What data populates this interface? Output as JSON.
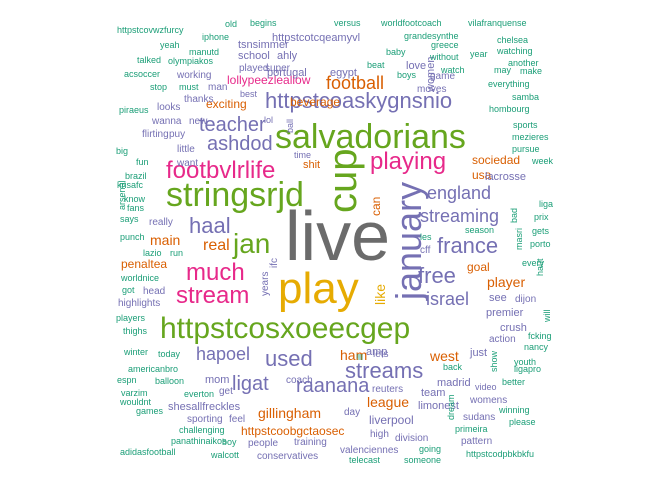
{
  "colors": {
    "gray": "#6b6b6b",
    "gold": "#e6ab02",
    "green": "#66a61e",
    "magenta": "#e7298a",
    "purple": "#7570b3",
    "orange": "#d95f02",
    "teal": "#1b9e77"
  },
  "words": [
    {
      "text": "live",
      "color": "gray"
    },
    {
      "text": "play",
      "color": "gold"
    },
    {
      "text": "httpstcosxoeecgep",
      "color": "green"
    },
    {
      "text": "salvadorians",
      "color": "green"
    },
    {
      "text": "stringsrjd",
      "color": "green"
    },
    {
      "text": "cup",
      "color": "green"
    },
    {
      "text": "january",
      "color": "purple"
    },
    {
      "text": "playing",
      "color": "magenta"
    },
    {
      "text": "jan",
      "color": "green"
    },
    {
      "text": "streams",
      "color": "purple"
    },
    {
      "text": "httpstcoaskygnsnio",
      "color": "purple"
    },
    {
      "text": "footbvlrlife",
      "color": "magenta"
    },
    {
      "text": "much",
      "color": "magenta"
    },
    {
      "text": "stream",
      "color": "magenta"
    },
    {
      "text": "used",
      "color": "purple"
    },
    {
      "text": "france",
      "color": "purple"
    },
    {
      "text": "free",
      "color": "purple"
    },
    {
      "text": "teacher",
      "color": "purple"
    },
    {
      "text": "england",
      "color": "purple"
    },
    {
      "text": "streaming",
      "color": "purple"
    },
    {
      "text": "haal",
      "color": "purple"
    },
    {
      "text": "israel",
      "color": "purple"
    },
    {
      "text": "hapoel",
      "color": "purple"
    },
    {
      "text": "ashdod",
      "color": "purple"
    },
    {
      "text": "ligat",
      "color": "purple"
    },
    {
      "text": "raanana",
      "color": "purple"
    },
    {
      "text": "football",
      "color": "orange"
    },
    {
      "text": "like",
      "color": "gold"
    },
    {
      "text": "real",
      "color": "orange"
    },
    {
      "text": "main",
      "color": "orange"
    },
    {
      "text": "gillingham",
      "color": "orange"
    },
    {
      "text": "league",
      "color": "orange"
    },
    {
      "text": "player",
      "color": "orange"
    },
    {
      "text": "goal",
      "color": "orange"
    },
    {
      "text": "ham",
      "color": "orange"
    },
    {
      "text": "west",
      "color": "orange"
    },
    {
      "text": "usa",
      "color": "orange"
    },
    {
      "text": "sociedad",
      "color": "orange"
    },
    {
      "text": "can",
      "color": "orange"
    },
    {
      "text": "httpstcoobgctaosec",
      "color": "orange"
    },
    {
      "text": "penaltea",
      "color": "orange"
    },
    {
      "text": "lollypeezleallow",
      "color": "magenta"
    },
    {
      "text": "exciting",
      "color": "orange"
    },
    {
      "text": "shit",
      "color": "orange"
    },
    {
      "text": "beverage",
      "color": "orange"
    },
    {
      "text": "liverpool",
      "color": "purple"
    },
    {
      "text": "madrid",
      "color": "purple"
    },
    {
      "text": "team",
      "color": "purple"
    },
    {
      "text": "mom",
      "color": "purple"
    },
    {
      "text": "coach",
      "color": "purple"
    },
    {
      "text": "shesallfreckles",
      "color": "purple"
    },
    {
      "text": "tsnsimmer",
      "color": "purple"
    },
    {
      "text": "school",
      "color": "purple"
    },
    {
      "text": "ahly",
      "color": "purple"
    },
    {
      "text": "httpstcotcqeamyvl",
      "color": "purple"
    },
    {
      "text": "portugal",
      "color": "purple"
    },
    {
      "text": "egypt",
      "color": "purple"
    },
    {
      "text": "love",
      "color": "purple"
    },
    {
      "text": "women",
      "color": "purple"
    },
    {
      "text": "game",
      "color": "purple"
    },
    {
      "text": "moves",
      "color": "purple"
    },
    {
      "text": "just",
      "color": "purple"
    },
    {
      "text": "premier",
      "color": "purple"
    },
    {
      "text": "amp",
      "color": "purple"
    },
    {
      "text": "see",
      "color": "purple"
    },
    {
      "text": "lacrosse",
      "color": "purple"
    },
    {
      "text": "limonest",
      "color": "purple"
    },
    {
      "text": "crush",
      "color": "purple"
    },
    {
      "text": "dijon",
      "color": "purple"
    },
    {
      "text": "cff",
      "color": "purple"
    },
    {
      "text": "little",
      "color": "purple"
    },
    {
      "text": "want",
      "color": "purple"
    },
    {
      "text": "flirting",
      "color": "purple"
    },
    {
      "text": "looks",
      "color": "purple"
    },
    {
      "text": "working",
      "color": "purple"
    },
    {
      "text": "played",
      "color": "purple"
    },
    {
      "text": "thanks",
      "color": "purple"
    },
    {
      "text": "puy",
      "color": "purple"
    },
    {
      "text": "new",
      "color": "purple"
    },
    {
      "text": "wanna",
      "color": "purple"
    },
    {
      "text": "really",
      "color": "purple"
    },
    {
      "text": "high",
      "color": "purple"
    },
    {
      "text": "division",
      "color": "purple"
    },
    {
      "text": "years",
      "color": "purple"
    },
    {
      "text": "ifc",
      "color": "purple"
    },
    {
      "text": "head",
      "color": "purple"
    },
    {
      "text": "highlights",
      "color": "purple"
    },
    {
      "text": "super",
      "color": "purple"
    },
    {
      "text": "man",
      "color": "purple"
    },
    {
      "text": "get",
      "color": "purple"
    },
    {
      "text": "sporting",
      "color": "purple"
    },
    {
      "text": "feel",
      "color": "purple"
    },
    {
      "text": "day",
      "color": "purple"
    },
    {
      "text": "training",
      "color": "purple"
    },
    {
      "text": "conservatives",
      "color": "purple"
    },
    {
      "text": "valenciennes",
      "color": "purple"
    },
    {
      "text": "reuters",
      "color": "purple"
    },
    {
      "text": "lets",
      "color": "purple"
    },
    {
      "text": "action",
      "color": "purple"
    },
    {
      "text": "people",
      "color": "purple"
    },
    {
      "text": "sudans",
      "color": "purple"
    },
    {
      "text": "pattern",
      "color": "purple"
    },
    {
      "text": "womens",
      "color": "purple"
    },
    {
      "text": "video",
      "color": "purple"
    },
    {
      "text": "best",
      "color": "purple"
    },
    {
      "text": "lol",
      "color": "purple"
    },
    {
      "text": "ball",
      "color": "purple"
    },
    {
      "text": "time",
      "color": "purple"
    },
    {
      "text": "httpstcovwzfurcy",
      "color": "teal"
    },
    {
      "text": "old",
      "color": "teal"
    },
    {
      "text": "begins",
      "color": "teal"
    },
    {
      "text": "versus",
      "color": "teal"
    },
    {
      "text": "worldfootcoach",
      "color": "teal"
    },
    {
      "text": "vilafranquense",
      "color": "teal"
    },
    {
      "text": "iphone",
      "color": "teal"
    },
    {
      "text": "grandesynthe",
      "color": "teal"
    },
    {
      "text": "chelsea",
      "color": "teal"
    },
    {
      "text": "yeah",
      "color": "teal"
    },
    {
      "text": "manutd",
      "color": "teal"
    },
    {
      "text": "baby",
      "color": "teal"
    },
    {
      "text": "greece",
      "color": "teal"
    },
    {
      "text": "year",
      "color": "teal"
    },
    {
      "text": "watching",
      "color": "teal"
    },
    {
      "text": "talked",
      "color": "teal"
    },
    {
      "text": "olympiakos",
      "color": "teal"
    },
    {
      "text": "beat",
      "color": "teal"
    },
    {
      "text": "without",
      "color": "teal"
    },
    {
      "text": "another",
      "color": "teal"
    },
    {
      "text": "acsoccer",
      "color": "teal"
    },
    {
      "text": "boys",
      "color": "teal"
    },
    {
      "text": "watch",
      "color": "teal"
    },
    {
      "text": "may",
      "color": "teal"
    },
    {
      "text": "make",
      "color": "teal"
    },
    {
      "text": "stop",
      "color": "teal"
    },
    {
      "text": "must",
      "color": "teal"
    },
    {
      "text": "everything",
      "color": "teal"
    },
    {
      "text": "samba",
      "color": "teal"
    },
    {
      "text": "piraeus",
      "color": "teal"
    },
    {
      "text": "hombourg",
      "color": "teal"
    },
    {
      "text": "sports",
      "color": "teal"
    },
    {
      "text": "mezieres",
      "color": "teal"
    },
    {
      "text": "pursue",
      "color": "teal"
    },
    {
      "text": "big",
      "color": "teal"
    },
    {
      "text": "week",
      "color": "teal"
    },
    {
      "text": "fun",
      "color": "teal"
    },
    {
      "text": "arsenal",
      "color": "teal"
    },
    {
      "text": "brazil",
      "color": "teal"
    },
    {
      "text": "krisafc",
      "color": "teal"
    },
    {
      "text": "know",
      "color": "teal"
    },
    {
      "text": "liga",
      "color": "teal"
    },
    {
      "text": "bad",
      "color": "teal"
    },
    {
      "text": "prix",
      "color": "teal"
    },
    {
      "text": "fans",
      "color": "teal"
    },
    {
      "text": "says",
      "color": "teal"
    },
    {
      "text": "gets",
      "color": "teal"
    },
    {
      "text": "season",
      "color": "teal"
    },
    {
      "text": "masri",
      "color": "teal"
    },
    {
      "text": "porto",
      "color": "teal"
    },
    {
      "text": "les",
      "color": "teal"
    },
    {
      "text": "punch",
      "color": "teal"
    },
    {
      "text": "lazio",
      "color": "teal"
    },
    {
      "text": "run",
      "color": "teal"
    },
    {
      "text": "every",
      "color": "teal"
    },
    {
      "text": "haut",
      "color": "teal"
    },
    {
      "text": "worldnice",
      "color": "teal"
    },
    {
      "text": "got",
      "color": "teal"
    },
    {
      "text": "players",
      "color": "teal"
    },
    {
      "text": "thighs",
      "color": "teal"
    },
    {
      "text": "will",
      "color": "teal"
    },
    {
      "text": "fcking",
      "color": "teal"
    },
    {
      "text": "nancy",
      "color": "teal"
    },
    {
      "text": "winter",
      "color": "teal"
    },
    {
      "text": "today",
      "color": "teal"
    },
    {
      "text": "ill",
      "color": "teal"
    },
    {
      "text": "show",
      "color": "teal"
    },
    {
      "text": "ligapro",
      "color": "teal"
    },
    {
      "text": "americanbro",
      "color": "teal"
    },
    {
      "text": "back",
      "color": "teal"
    },
    {
      "text": "espn",
      "color": "teal"
    },
    {
      "text": "balloon",
      "color": "teal"
    },
    {
      "text": "youth",
      "color": "teal"
    },
    {
      "text": "better",
      "color": "teal"
    },
    {
      "text": "varzim",
      "color": "teal"
    },
    {
      "text": "everton",
      "color": "teal"
    },
    {
      "text": "wouldnt",
      "color": "teal"
    },
    {
      "text": "games",
      "color": "teal"
    },
    {
      "text": "winning",
      "color": "teal"
    },
    {
      "text": "challenging",
      "color": "teal"
    },
    {
      "text": "dream",
      "color": "teal"
    },
    {
      "text": "primeira",
      "color": "teal"
    },
    {
      "text": "please",
      "color": "teal"
    },
    {
      "text": "panathinaikos",
      "color": "teal"
    },
    {
      "text": "boy",
      "color": "teal"
    },
    {
      "text": "going",
      "color": "teal"
    },
    {
      "text": "adidasfootball",
      "color": "teal"
    },
    {
      "text": "walcott",
      "color": "teal"
    },
    {
      "text": "telecast",
      "color": "teal"
    },
    {
      "text": "someone",
      "color": "teal"
    },
    {
      "text": "httpstcodpbkbkfu",
      "color": "teal"
    }
  ]
}
